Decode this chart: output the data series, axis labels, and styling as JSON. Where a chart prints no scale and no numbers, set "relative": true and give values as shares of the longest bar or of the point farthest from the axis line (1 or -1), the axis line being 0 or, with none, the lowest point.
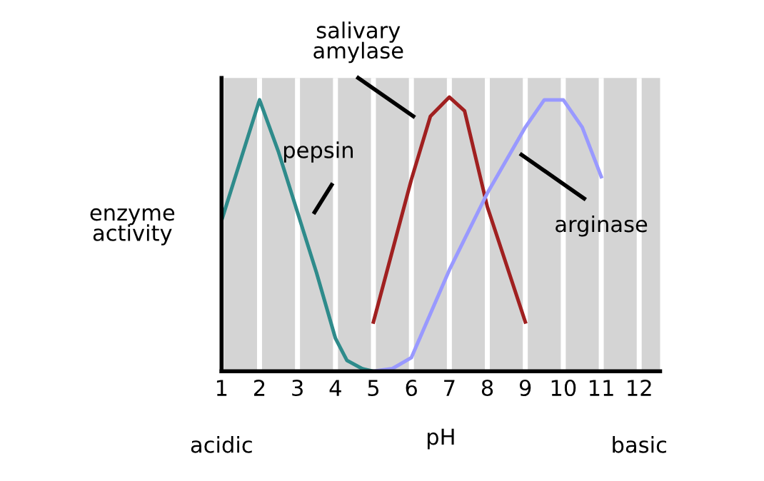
{
  "chart_data": {
    "type": "line",
    "relative": true,
    "xlabel": "pH",
    "ylabel": "enzyme activity",
    "xlim": [
      1,
      12.55
    ],
    "xticks": [
      1,
      2,
      3,
      4,
      5,
      6,
      7,
      8,
      9,
      10,
      11,
      12
    ],
    "grid": "x",
    "legend": false,
    "marker": "none",
    "line_style": "solid",
    "annotations": [
      "acidic",
      "basic"
    ],
    "series": [
      {
        "name": "pepsin",
        "color": "#2e8b8b",
        "x": [
          1,
          2,
          2.5,
          3,
          3.5,
          4,
          4.3,
          4.7,
          5
        ],
        "values": [
          0.55,
          0.99,
          0.8,
          0.58,
          0.36,
          0.12,
          0.04,
          0.01,
          0.0
        ]
      },
      {
        "name": "salivary amylase",
        "color": "#a02020",
        "x": [
          5,
          6,
          6.5,
          7,
          7.4,
          8,
          9
        ],
        "values": [
          0.18,
          0.7,
          0.93,
          1.0,
          0.95,
          0.6,
          0.18
        ]
      },
      {
        "name": "arginase",
        "color": "#9999ff",
        "x": [
          5,
          5.5,
          6,
          7,
          8,
          9,
          9.5,
          10,
          10.5,
          11
        ],
        "values": [
          0.0,
          0.01,
          0.05,
          0.37,
          0.65,
          0.89,
          0.99,
          0.99,
          0.89,
          0.71
        ]
      }
    ]
  }
}
